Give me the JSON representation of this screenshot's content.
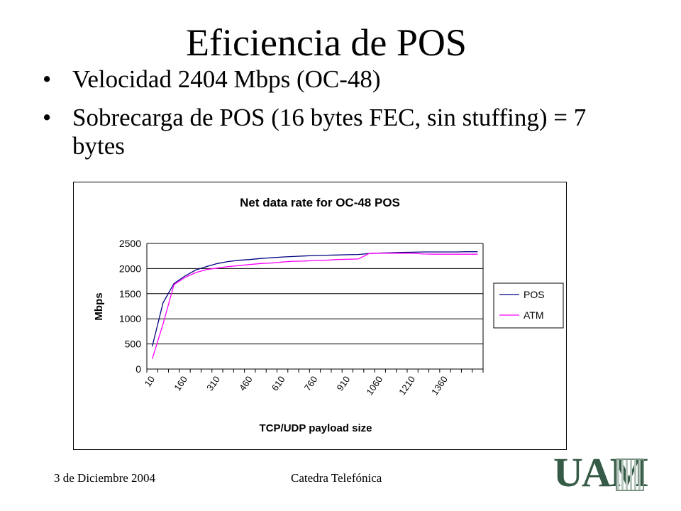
{
  "slide": {
    "title": "Eficiencia de POS",
    "bullets": [
      "Velocidad 2404 Mbps (OC-48)",
      "Sobrecarga de POS (16 bytes FEC, sin stuffing) = 7 bytes"
    ]
  },
  "footer": {
    "date": "3 de Diciembre 2004",
    "center": "Catedra Telefónica"
  },
  "logo": {
    "text": "UAM"
  },
  "chart_data": {
    "type": "line",
    "title": "Net data rate for OC-48 POS",
    "xlabel": "TCP/UDP payload size",
    "ylabel": "Mbps",
    "x": [
      10,
      60,
      110,
      160,
      210,
      260,
      310,
      360,
      410,
      460,
      510,
      560,
      610,
      660,
      710,
      760,
      810,
      860,
      910,
      960,
      1010,
      1060,
      1110,
      1160,
      1210,
      1260,
      1310,
      1360,
      1410,
      1460,
      1510
    ],
    "x_tick_labels": [
      "10",
      "160",
      "310",
      "460",
      "610",
      "760",
      "910",
      "1060",
      "1210",
      "1360"
    ],
    "ylim": [
      0,
      2500
    ],
    "y_ticks": [
      0,
      500,
      1000,
      1500,
      2000,
      2500
    ],
    "grid": true,
    "legend": "right",
    "series": [
      {
        "name": "POS",
        "color": "#000080",
        "values": [
          450,
          1320,
          1700,
          1850,
          1970,
          2040,
          2100,
          2140,
          2165,
          2180,
          2200,
          2215,
          2230,
          2240,
          2250,
          2260,
          2265,
          2270,
          2275,
          2280,
          2300,
          2310,
          2315,
          2320,
          2325,
          2330,
          2330,
          2330,
          2330,
          2335,
          2335
        ]
      },
      {
        "name": "ATM",
        "color": "#ff00ff",
        "values": [
          200,
          900,
          1680,
          1820,
          1920,
          1980,
          2010,
          2040,
          2060,
          2080,
          2100,
          2110,
          2130,
          2145,
          2150,
          2160,
          2165,
          2180,
          2185,
          2190,
          2300,
          2305,
          2305,
          2305,
          2305,
          2290,
          2285,
          2285,
          2285,
          2285,
          2285
        ]
      }
    ]
  }
}
